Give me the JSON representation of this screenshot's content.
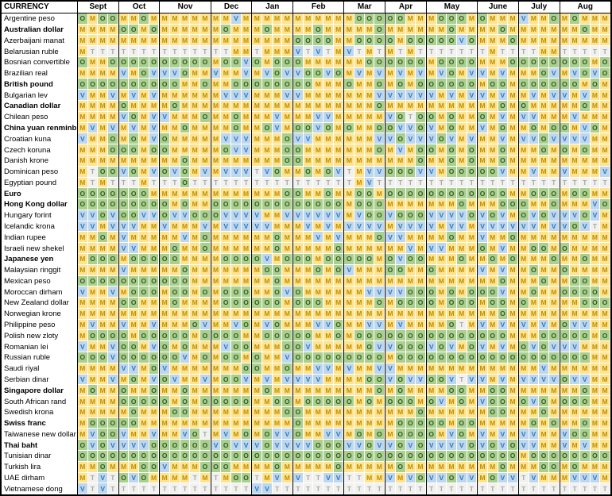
{
  "header": {
    "currency_label": "CURRENCY",
    "months": [
      {
        "label": "Sept",
        "weeks": 4
      },
      {
        "label": "Oct",
        "weeks": 4
      },
      {
        "label": "Nov",
        "weeks": 5
      },
      {
        "label": "Dec",
        "weeks": 4
      },
      {
        "label": "Jan",
        "weeks": 4
      },
      {
        "label": "Feb",
        "weeks": 5
      },
      {
        "label": "Mar",
        "weeks": 4
      },
      {
        "label": "Apr",
        "weeks": 4
      },
      {
        "label": "May",
        "weeks": 5
      },
      {
        "label": "June",
        "weeks": 4
      },
      {
        "label": "July",
        "weeks": 4
      },
      {
        "label": "Aug",
        "weeks": 5
      }
    ]
  },
  "cell_styles": {
    "M": {
      "bg": "#FFE38F",
      "fg": "#BE8F00"
    },
    "O": {
      "bg": "#A9D08E",
      "fg": "#375623"
    },
    "V": {
      "bg": "#BDD7EE",
      "fg": "#2E75B6"
    },
    "T": {
      "bg": "#F1F1EF",
      "fg": "#A6A6A6"
    }
  },
  "rows": [
    {
      "currency": "Argentine peso",
      "bold": false,
      "cells": [
        "OMOO",
        "MMOM",
        "MMMMM",
        "MMVM",
        "MMMM",
        "MMMMM",
        "MOOO",
        "OOMM",
        "MOOOM",
        "OMMM",
        "VMMO",
        "MOMMM"
      ]
    },
    {
      "currency": "Australian dollar",
      "bold": true,
      "cells": [
        "MMMM",
        "OOMO",
        "MMMMM",
        "MOMM",
        "MOMM",
        "MMOMM",
        "MMMO",
        "MMMM",
        "MMOMM",
        "MMOM",
        "MMMM",
        "MMOMM"
      ]
    },
    {
      "currency": "Azerbaijani manat",
      "bold": false,
      "cells": [
        "MMMM",
        "MMMM",
        "MMMMM",
        "MMMM",
        "MMMM",
        "OOOOM",
        "MOOO",
        "OMOO",
        "OOOVO",
        "MMMO",
        "MMMM",
        "MMMMM"
      ]
    },
    {
      "currency": "Belarusian ruble",
      "bold": false,
      "cells": [
        "MTTT",
        "TTTT",
        "TTTTT",
        "TTMM",
        "TMMM",
        "VTVTM",
        "VTMT",
        "MTMT",
        "TTTTT",
        "TMTT",
        "TTMM",
        "TTTTT"
      ]
    },
    {
      "currency": "Bosnian convertible",
      "bold": false,
      "cells": [
        "OMMO",
        "OOOO",
        "OOOOO",
        "MOOV",
        "OMOO",
        "OMMMM",
        "MMOO",
        "OOOO",
        "MOOOO",
        "MMMO",
        "OOOO",
        "OOOMO"
      ]
    },
    {
      "currency": "Brazilian real",
      "bold": false,
      "cells": [
        "MMMM",
        "VMOV",
        "VVOMM",
        "VMMV",
        "MVOV",
        "VOOVO",
        "MVMV",
        "MVMV",
        "MVOMV",
        "VMVM",
        "MMOV",
        "MVOVO"
      ]
    },
    {
      "currency": "British pound",
      "bold": true,
      "cells": [
        "OOOO",
        "OOOO",
        "OOMMO",
        "MMOO",
        "OOOO",
        "OOMMM",
        "OMMO",
        "MOMO",
        "OOOOO",
        "MOOM",
        "OOOO",
        "OOMOM"
      ]
    },
    {
      "currency": "Bulgarian lev",
      "bold": false,
      "cells": [
        "VMMV",
        "MVMV",
        "MMMMM",
        "MVVV",
        "MMMV",
        "VMMMM",
        "MMMV",
        "VVVV",
        "VMVMV",
        "VMVM",
        "MVMV",
        "VMVMM"
      ]
    },
    {
      "currency": "Canadian dollar",
      "bold": true,
      "cells": [
        "MMMM",
        "OMMM",
        "MOMMM",
        "MMMM",
        "MMMM",
        "MMMMM",
        "MMMO",
        "MMMM",
        "MMMMM",
        "MMOM",
        "OMMM",
        "MMOMM"
      ]
    },
    {
      "currency": "Chilean peso",
      "bold": false,
      "cells": [
        "MMMM",
        "VOMV",
        "VMMMO",
        "MMOM",
        "MMVM",
        "MMVVM",
        "MMMM",
        "VOTO",
        "OMOMM",
        "OMVM",
        "VVMM",
        "MVMMM"
      ]
    },
    {
      "currency": "China yuan renminbi",
      "bold": true,
      "cells": [
        "MVMV",
        "MVMV",
        "MMOMM",
        "MMOM",
        "MOVM",
        "OOVOM",
        "OMMO",
        "OVVO",
        "VMOMM",
        "VMOM",
        "MOMO",
        "OMVOM"
      ]
    },
    {
      "currency": "Croatian kuna",
      "bold": false,
      "cells": [
        "VMMO",
        "MOMV",
        "OMMMM",
        "MVVV",
        "MMMO",
        "VVMMM",
        "MMMV",
        "VOVV",
        "VOVMV",
        "MMVM",
        "VVOV",
        "VVVMM"
      ]
    },
    {
      "currency": "Czech koruna",
      "bold": false,
      "cells": [
        "MMMO",
        "OOMO",
        "OMMMM",
        "MOVV",
        "MMMO",
        "OMMMM",
        "MMMO",
        "MVMO",
        "OMOMO",
        "MMOM",
        "MMOM",
        "OMOMM"
      ]
    },
    {
      "currency": "Danish krone",
      "bold": false,
      "cells": [
        "MMMM",
        "MMMM",
        "MMOMM",
        "MMMM",
        "MMMO",
        "OMMMM",
        "MMMM",
        "MMMO",
        "MMOMO",
        "MMOM",
        "MMMM",
        "MMMMM"
      ]
    },
    {
      "currency": "Dominican peso",
      "bold": false,
      "cells": [
        "MTOO",
        "VOMV",
        "OVOMV",
        "MVVV",
        "TVOM",
        "MOMOV",
        "TMVV",
        "OOOV",
        "VMOOO",
        "OOVM",
        "MVMM",
        "VMMMV"
      ]
    },
    {
      "currency": "Egyptian pound",
      "bold": false,
      "cells": [
        "MTMT",
        "TTMT",
        "TTOTT",
        "TTTT",
        "TTTT",
        "TTTTT",
        "TMVT",
        "TTTT",
        "TTTTT",
        "TTTT",
        "TTTT",
        "TTTTT"
      ]
    },
    {
      "currency": "Euro",
      "bold": true,
      "cells": [
        "OOOO",
        "OOOM",
        "MMMMM",
        "MMMM",
        "MMMO",
        "OMMOM",
        "MOOM",
        "OOOO",
        "OOOOO",
        "OOOM",
        "MOOO",
        "MOOMM"
      ]
    },
    {
      "currency": "Hong Kong dollar",
      "bold": true,
      "cells": [
        "OOOO",
        "OOOO",
        "OMOMM",
        "OOOO",
        "OOOO",
        "OOOOO",
        "MOOO",
        "MMMM",
        "MMMOM",
        "MMOO",
        "OMMO",
        "MMMVO"
      ]
    },
    {
      "currency": "Hungary forint",
      "bold": false,
      "cells": [
        "VVOV",
        "OOVV",
        "OVVOO",
        "OVVV",
        "VMMV",
        "VVVVV",
        "MVOO",
        "VOOO",
        "VVVVO",
        "VOVM",
        "OVOV",
        "VVOVM"
      ]
    },
    {
      "currency": "Icelandic krona",
      "bold": false,
      "cells": [
        "VVMV",
        "VVMM",
        "VMMMV",
        "MVVV",
        "VVMM",
        "MVMVM",
        "VVVV",
        "MVVV",
        "VMVVM",
        "VVVV",
        "VVMV",
        "VOVTM"
      ]
    },
    {
      "currency": "Indian rupee",
      "bold": false,
      "cells": [
        "MMOM",
        "VMMM",
        "MMVMO",
        "MMMM",
        "MMOM",
        "MMVMV",
        "MMMO",
        "VVMM",
        "MMOMM",
        "VMMO",
        "MMMM",
        "MMMMM"
      ]
    },
    {
      "currency": "Israeli new shekel",
      "bold": false,
      "cells": [
        "MMMM",
        "VVMM",
        "MOMMO",
        "MMMM",
        "MMOM",
        "MMMMO",
        "MMMM",
        "MMVM",
        "VVMMM",
        "OMVM",
        "MOOM",
        "OMMMM"
      ]
    },
    {
      "currency": "Japanese yen",
      "bold": true,
      "cells": [
        "MOOO",
        "MOOO",
        "OOMMM",
        "MOOO",
        "OVMO",
        "OOMOO",
        "OOOM",
        "OVOO",
        "MMMOM",
        "MOMO",
        "MMMO",
        "MMOMM"
      ]
    },
    {
      "currency": "Malaysian ringgit",
      "bold": false,
      "cells": [
        "MMMM",
        "VMMM",
        "MMOMM",
        "MMMM",
        "MOOM",
        "MMOMO",
        "VMMM",
        "OOMM",
        "OMMMM",
        "VMVM",
        "MOMM",
        "OMMMM"
      ]
    },
    {
      "currency": "Mexican peso",
      "bold": false,
      "cells": [
        "OOOO",
        "OOOO",
        "OOOMM",
        "MMMM",
        "MMOM",
        "MMMMM",
        "MMMM",
        "MMMM",
        "MMMMM",
        "MMOM",
        "MMOM",
        "MOOMM"
      ]
    },
    {
      "currency": "Moroccan dirham",
      "bold": false,
      "cells": [
        "VMMV",
        "MOOO",
        "MOOMO",
        "MOOO",
        "MMOV",
        "OMMMM",
        "MMVV",
        "VVOO",
        "OMOMO",
        "OOVM",
        "MOMM",
        "OOOOM"
      ]
    },
    {
      "currency": "New Zealand dollar",
      "bold": false,
      "cells": [
        "MMMM",
        "OOMM",
        "MOMMM",
        "MOOO",
        "OOOM",
        "OOOMM",
        "MMMO",
        "MOOO",
        "OMOOO",
        "MOOM",
        "OMMM",
        "MMOOO"
      ]
    },
    {
      "currency": "Norwegian krone",
      "bold": false,
      "cells": [
        "MMMM",
        "MMMM",
        "MMMMM",
        "MMMM",
        "MMMM",
        "MMMMM",
        "MMMM",
        "MMMM",
        "MMMMM",
        "MMOM",
        "MMMM",
        "MMMMM"
      ]
    },
    {
      "currency": "Philippine peso",
      "bold": false,
      "cells": [
        "MVMM",
        "VMMV",
        "MMMOV",
        "MMVO",
        "MVOM",
        "MMVVO",
        "MMVV",
        "MVMM",
        "MMOTM",
        "VMVM",
        "VMVM",
        "OVVMM"
      ]
    },
    {
      "currency": "Polish new zloty",
      "bold": false,
      "cells": [
        "MOOO",
        "OMOO",
        "OOOMO",
        "OOOM",
        "MOOO",
        "OOMMO",
        "MOOO",
        "OOOO",
        "OOOOO",
        "OOOM",
        "MMOO",
        "OOOMO"
      ]
    },
    {
      "currency": "Romanian lei",
      "bold": false,
      "cells": [
        "VMMV",
        "OOMV",
        "OMOMM",
        "MVOO",
        "MMMO",
        "OVMMM",
        "MMOV",
        "VOOO",
        "VOVMO",
        "VMVM",
        "OVOV",
        "VVMMM"
      ]
    },
    {
      "currency": "Russian ruble",
      "bold": false,
      "cells": [
        "OOOV",
        "OOOO",
        "OOVMO",
        "MOOM",
        "OMMV",
        "OOOOO",
        "OOOO",
        "MOOO",
        "OOOOO",
        "OOOO",
        "OOOO",
        "OOOMM"
      ]
    },
    {
      "currency": "Saudi riyal",
      "bold": false,
      "cells": [
        "MMMM",
        "VVMO",
        "VMMMM",
        "MMMO",
        "OMMO",
        "MMVVM",
        "VMMV",
        "VMMM",
        "MMMMM",
        "MMMM",
        "MMVM",
        "MMMMM"
      ]
    },
    {
      "currency": "Serbian dinar",
      "bold": false,
      "cells": [
        "VMMV",
        "MOMV",
        "OVMMV",
        "MOOV",
        "MVMV",
        "VVVMM",
        "MMOO",
        "VOVV",
        "OOVTV",
        "VMVM",
        "VVVV",
        "OVVMM"
      ]
    },
    {
      "currency": "Singapore dollar",
      "bold": true,
      "cells": [
        "MOMM",
        "OMMO",
        "MMOMM",
        "MMMM",
        "MOMM",
        "MMMMM",
        "MMMO",
        "MOMM",
        "MMOOM",
        "MOOM",
        "MMMM",
        "MMOMM"
      ]
    },
    {
      "currency": "South African rand",
      "bold": false,
      "cells": [
        "MMMM",
        "OOOO",
        "OMOMO",
        "OOOO",
        "MMOO",
        "MOOOO",
        "OMOM",
        "OOOM",
        "OVMOM",
        "VOOM",
        "OVOM",
        "OOOMM"
      ]
    },
    {
      "currency": "Swedish krona",
      "bold": false,
      "cells": [
        "MMMM",
        "MOMM",
        "MOOMM",
        "MMMM",
        "MMMO",
        "OMMMM",
        "MMMM",
        "MMMO",
        "MMMMM",
        "MOOM",
        "MMOM",
        "MMMMM"
      ]
    },
    {
      "currency": "Swiss franc",
      "bold": true,
      "cells": [
        "MOOO",
        "OOMM",
        "MMMMM",
        "MMMM",
        "MMMM",
        "OMMMM",
        "MMMM",
        "MOOO",
        "OOMOO",
        "MMMM",
        "MOMO",
        "MMOMM"
      ]
    },
    {
      "currency": "Taiwanese new dollar",
      "bold": false,
      "cells": [
        "MVOO",
        "VMMV",
        "MMVOT",
        "MVMO",
        "MOVV",
        "OMMVV",
        "MOMO",
        "MOOO",
        "OMVOM",
        "VMVM",
        "VVMM",
        "VOOMM"
      ]
    },
    {
      "currency": "Thai baht",
      "bold": true,
      "cells": [
        "OVOV",
        "VVVO",
        "OOOOO",
        "VOVV",
        "VOVV",
        "VVOOO",
        "VVOV",
        "VOVO",
        "VVVVO",
        "VOVO",
        "VVMM",
        "VMVMM"
      ]
    },
    {
      "currency": "Tunisian dinar",
      "bold": false,
      "cells": [
        "OOOO",
        "OOOO",
        "OOOOO",
        "OOOO",
        "OOOO",
        "OOOOO",
        "OOOO",
        "OOOO",
        "OOOOO",
        "OOOO",
        "MOOO",
        "OOOOO"
      ]
    },
    {
      "currency": "Turkish lira",
      "bold": false,
      "cells": [
        "MMOM",
        "MMOO",
        "VMMMO",
        "OOMM",
        "MMOM",
        "MMMMO",
        "MMMM",
        "MOMM",
        "MMMMM",
        "MMOM",
        "MMOO",
        "MOMMM"
      ]
    },
    {
      "currency": "UAE dirham",
      "bold": false,
      "cells": [
        "MTVT",
        "OVOM",
        "MMMTM",
        "TMOO",
        "TMVM",
        "VTTVV",
        "TTMM",
        "VMVO",
        "VVOVV",
        "MOVV",
        "TVMM",
        "MVVVM"
      ]
    },
    {
      "currency": "Vietnamese dong",
      "bold": false,
      "cells": [
        "VTVT",
        "TTTT",
        "TTTTT",
        "TTTT",
        "VVTT",
        "TTTTT",
        "TTTT",
        "TTTT",
        "TTTTT",
        "TTTT",
        "TTTT",
        "TTTTT"
      ]
    }
  ]
}
